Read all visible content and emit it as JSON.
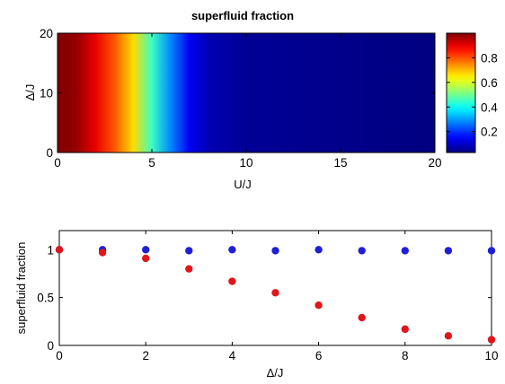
{
  "chart_data": [
    {
      "type": "heatmap",
      "title": "superfluid fraction",
      "xlabel": "U/J",
      "ylabel": "Δ/J",
      "xlim": [
        0,
        20
      ],
      "ylim": [
        0,
        20
      ],
      "x_ticks": [
        "0",
        "5",
        "10",
        "15",
        "20"
      ],
      "y_ticks": [
        "0",
        "10",
        "20"
      ],
      "colormap": "jet",
      "colorbar": {
        "range": [
          0.03,
          1.0
        ],
        "ticks": [
          "0.2",
          "0.4",
          "0.6",
          "0.8"
        ]
      },
      "profile_along_x": {
        "x": [
          0,
          1,
          2,
          3,
          4,
          5,
          6,
          7,
          8,
          10,
          15,
          20
        ],
        "value": [
          1.0,
          0.98,
          0.9,
          0.8,
          0.67,
          0.45,
          0.28,
          0.14,
          0.08,
          0.05,
          0.04,
          0.03
        ]
      }
    },
    {
      "type": "scatter",
      "xlabel": "Δ/J",
      "ylabel": "superfluid fraction",
      "xlim": [
        0,
        10
      ],
      "ylim": [
        0,
        1.2
      ],
      "x_ticks": [
        "0",
        "2",
        "4",
        "6",
        "8",
        "10"
      ],
      "y_ticks": [
        "0",
        "0.5",
        "1"
      ],
      "series": [
        {
          "color": "#1f1fd6",
          "x": [
            0,
            1,
            2,
            3,
            4,
            5,
            6,
            7,
            8,
            9,
            10
          ],
          "y": [
            1.0,
            1.0,
            1.0,
            0.99,
            1.0,
            0.99,
            1.0,
            0.99,
            0.99,
            0.99,
            0.99
          ]
        },
        {
          "color": "#e0161b",
          "x": [
            0,
            1,
            2,
            3,
            4,
            5,
            6,
            7,
            8,
            9,
            10
          ],
          "y": [
            1.0,
            0.97,
            0.91,
            0.8,
            0.67,
            0.55,
            0.42,
            0.29,
            0.17,
            0.1,
            0.06
          ]
        }
      ]
    }
  ]
}
